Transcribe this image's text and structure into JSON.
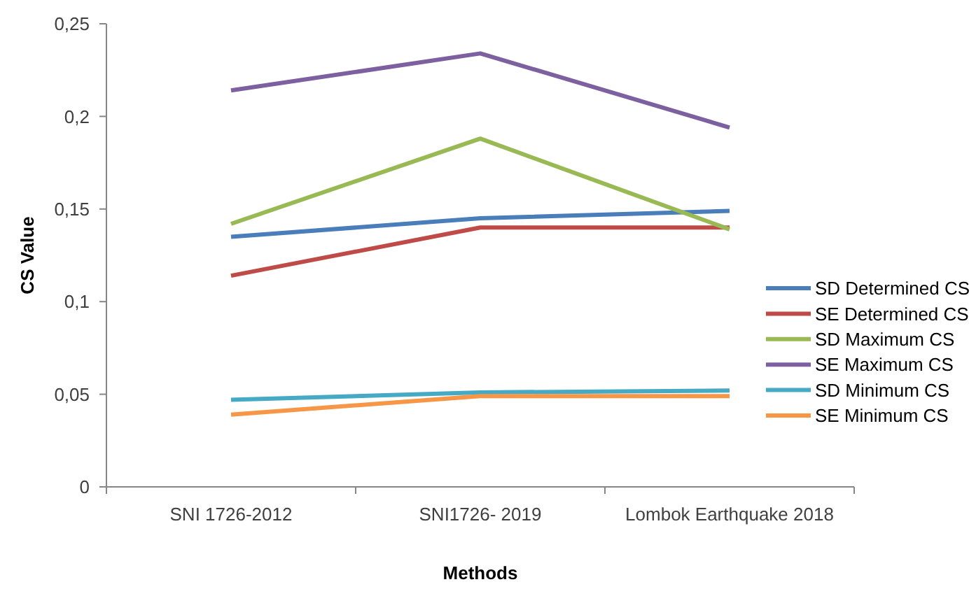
{
  "chart_data": {
    "type": "line",
    "xlabel": "Methods",
    "ylabel": "CS Value",
    "categories": [
      "SNI 1726-2012",
      "SNI1726- 2019",
      "Lombok Earthquake 2018"
    ],
    "series": [
      {
        "name": "SD Determined CS",
        "color": "#4a7ebb",
        "values": [
          0.135,
          0.145,
          0.149
        ]
      },
      {
        "name": "SE Determined CS",
        "color": "#be4b48",
        "values": [
          0.114,
          0.14,
          0.14
        ]
      },
      {
        "name": "SD Maximum CS",
        "color": "#98b954",
        "values": [
          0.142,
          0.188,
          0.139
        ]
      },
      {
        "name": "SE Maximum CS",
        "color": "#7d60a0",
        "values": [
          0.214,
          0.234,
          0.194
        ]
      },
      {
        "name": "SD Minimum CS",
        "color": "#46aac5",
        "values": [
          0.047,
          0.051,
          0.052
        ]
      },
      {
        "name": "SE Minimum CS",
        "color": "#f79646",
        "values": [
          0.039,
          0.049,
          0.049
        ]
      }
    ],
    "ylim": [
      0,
      0.25
    ],
    "yticks": [
      0,
      {
        "value": 0.05,
        "label": "0,05"
      },
      {
        "value": 0.1,
        "label": "0,1"
      },
      {
        "value": 0.15,
        "label": "0,15"
      },
      {
        "value": 0.2,
        "label": "0,2"
      },
      {
        "value": 0.25,
        "label": "0,25"
      }
    ],
    "legend": "right"
  }
}
